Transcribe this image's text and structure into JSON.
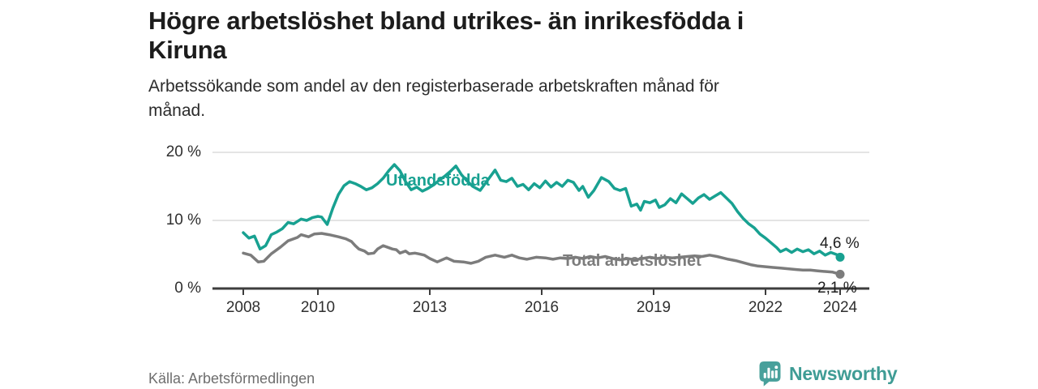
{
  "header": {
    "title_lines": [
      "Högre arbetslöshet bland utrikes- än inrikesfödda i",
      "Kiruna"
    ],
    "subtitle_lines": [
      "Arbetssökande som andel av den registerbaserade arbetskraften månad för",
      "månad."
    ]
  },
  "footer": {
    "source": "Källa: Arbetsförmedlingen",
    "brand": "Newsworthy"
  },
  "colors": {
    "accent_teal": "#18a191",
    "line_gray": "#7c7c7c",
    "axis": "#3d3d3d",
    "grid": "#dcdcdc",
    "brand_teal": "#3f9c95",
    "title_text": "#1c1c1c",
    "value_label_text": "#1d1d1d"
  },
  "chart_data": {
    "type": "line",
    "unit": "%",
    "grid": "horizontal-only",
    "x_range": [
      2008,
      2024
    ],
    "y_range": [
      0,
      20
    ],
    "x_ticks": [
      {
        "value": 2008,
        "label": "2008"
      },
      {
        "value": 2010,
        "label": "2010"
      },
      {
        "value": 2013,
        "label": "2013"
      },
      {
        "value": 2016,
        "label": "2016"
      },
      {
        "value": 2019,
        "label": "2019"
      },
      {
        "value": 2022,
        "label": "2022"
      },
      {
        "value": 2024,
        "label": "2024"
      }
    ],
    "y_ticks": [
      {
        "value": 0,
        "label": "0 %"
      },
      {
        "value": 10,
        "label": "10 %"
      },
      {
        "value": 20,
        "label": "20 %"
      }
    ],
    "series": [
      {
        "name": "Utlandsfödda",
        "color": "#18a191",
        "end_label": "4,6 %",
        "end_value": 4.6,
        "points": [
          [
            2008.0,
            8.2
          ],
          [
            2008.15,
            7.4
          ],
          [
            2008.3,
            7.7
          ],
          [
            2008.45,
            5.8
          ],
          [
            2008.6,
            6.3
          ],
          [
            2008.75,
            7.9
          ],
          [
            2008.9,
            8.3
          ],
          [
            2009.05,
            8.8
          ],
          [
            2009.2,
            9.7
          ],
          [
            2009.35,
            9.5
          ],
          [
            2009.55,
            10.2
          ],
          [
            2009.7,
            10.0
          ],
          [
            2009.85,
            10.4
          ],
          [
            2010.0,
            10.6
          ],
          [
            2010.1,
            10.5
          ],
          [
            2010.25,
            9.4
          ],
          [
            2010.4,
            11.8
          ],
          [
            2010.55,
            13.8
          ],
          [
            2010.7,
            15.1
          ],
          [
            2010.85,
            15.7
          ],
          [
            2011.0,
            15.4
          ],
          [
            2011.15,
            15.0
          ],
          [
            2011.3,
            14.5
          ],
          [
            2011.45,
            14.8
          ],
          [
            2011.6,
            15.4
          ],
          [
            2011.75,
            16.2
          ],
          [
            2011.9,
            17.3
          ],
          [
            2012.05,
            18.2
          ],
          [
            2012.2,
            17.3
          ],
          [
            2012.35,
            15.7
          ],
          [
            2012.5,
            14.5
          ],
          [
            2012.65,
            14.9
          ],
          [
            2012.8,
            14.3
          ],
          [
            2012.95,
            14.7
          ],
          [
            2013.1,
            15.2
          ],
          [
            2013.25,
            15.9
          ],
          [
            2013.4,
            16.5
          ],
          [
            2013.55,
            17.2
          ],
          [
            2013.7,
            18.0
          ],
          [
            2013.85,
            16.7
          ],
          [
            2014.0,
            15.8
          ],
          [
            2014.15,
            15.0
          ],
          [
            2014.35,
            14.4
          ],
          [
            2014.55,
            15.9
          ],
          [
            2014.75,
            17.4
          ],
          [
            2014.9,
            15.9
          ],
          [
            2015.05,
            15.7
          ],
          [
            2015.2,
            16.2
          ],
          [
            2015.35,
            15.0
          ],
          [
            2015.5,
            15.3
          ],
          [
            2015.65,
            14.5
          ],
          [
            2015.8,
            15.4
          ],
          [
            2015.95,
            14.8
          ],
          [
            2016.1,
            15.8
          ],
          [
            2016.25,
            14.9
          ],
          [
            2016.4,
            15.6
          ],
          [
            2016.55,
            15.0
          ],
          [
            2016.7,
            15.9
          ],
          [
            2016.85,
            15.6
          ],
          [
            2017.0,
            14.4
          ],
          [
            2017.1,
            15.0
          ],
          [
            2017.25,
            13.4
          ],
          [
            2017.4,
            14.4
          ],
          [
            2017.6,
            16.3
          ],
          [
            2017.8,
            15.7
          ],
          [
            2017.95,
            14.7
          ],
          [
            2018.1,
            14.4
          ],
          [
            2018.25,
            14.7
          ],
          [
            2018.4,
            12.1
          ],
          [
            2018.55,
            12.4
          ],
          [
            2018.65,
            11.5
          ],
          [
            2018.75,
            12.8
          ],
          [
            2018.9,
            12.6
          ],
          [
            2019.05,
            13.0
          ],
          [
            2019.15,
            11.9
          ],
          [
            2019.3,
            12.3
          ],
          [
            2019.45,
            13.2
          ],
          [
            2019.6,
            12.6
          ],
          [
            2019.75,
            13.9
          ],
          [
            2019.9,
            13.2
          ],
          [
            2020.05,
            12.5
          ],
          [
            2020.2,
            13.3
          ],
          [
            2020.35,
            13.8
          ],
          [
            2020.5,
            13.1
          ],
          [
            2020.65,
            13.6
          ],
          [
            2020.8,
            14.1
          ],
          [
            2020.95,
            13.3
          ],
          [
            2021.1,
            12.5
          ],
          [
            2021.25,
            11.3
          ],
          [
            2021.4,
            10.3
          ],
          [
            2021.55,
            9.5
          ],
          [
            2021.7,
            8.9
          ],
          [
            2021.85,
            8.0
          ],
          [
            2022.0,
            7.4
          ],
          [
            2022.15,
            6.7
          ],
          [
            2022.3,
            6.0
          ],
          [
            2022.4,
            5.4
          ],
          [
            2022.55,
            5.8
          ],
          [
            2022.7,
            5.3
          ],
          [
            2022.85,
            5.8
          ],
          [
            2023.0,
            5.4
          ],
          [
            2023.15,
            5.7
          ],
          [
            2023.3,
            5.1
          ],
          [
            2023.45,
            5.5
          ],
          [
            2023.6,
            4.9
          ],
          [
            2023.75,
            5.3
          ],
          [
            2023.9,
            5.0
          ],
          [
            2024.0,
            4.6
          ]
        ]
      },
      {
        "name": "Total arbetslöshet",
        "color": "#7c7c7c",
        "end_label": "2,1 %",
        "end_value": 2.1,
        "points": [
          [
            2008.0,
            5.2
          ],
          [
            2008.2,
            4.9
          ],
          [
            2008.4,
            3.9
          ],
          [
            2008.55,
            4.0
          ],
          [
            2008.75,
            5.1
          ],
          [
            2009.0,
            6.1
          ],
          [
            2009.2,
            7.0
          ],
          [
            2009.45,
            7.5
          ],
          [
            2009.55,
            7.9
          ],
          [
            2009.75,
            7.6
          ],
          [
            2009.9,
            8.0
          ],
          [
            2010.1,
            8.1
          ],
          [
            2010.3,
            7.9
          ],
          [
            2010.55,
            7.6
          ],
          [
            2010.75,
            7.3
          ],
          [
            2010.9,
            6.9
          ],
          [
            2011.0,
            6.3
          ],
          [
            2011.1,
            5.8
          ],
          [
            2011.25,
            5.5
          ],
          [
            2011.35,
            5.1
          ],
          [
            2011.5,
            5.2
          ],
          [
            2011.6,
            5.8
          ],
          [
            2011.75,
            6.3
          ],
          [
            2011.85,
            6.1
          ],
          [
            2012.0,
            5.8
          ],
          [
            2012.1,
            5.7
          ],
          [
            2012.2,
            5.2
          ],
          [
            2012.35,
            5.5
          ],
          [
            2012.45,
            5.1
          ],
          [
            2012.6,
            5.2
          ],
          [
            2012.7,
            5.1
          ],
          [
            2012.85,
            4.9
          ],
          [
            2013.0,
            4.4
          ],
          [
            2013.2,
            3.9
          ],
          [
            2013.45,
            4.5
          ],
          [
            2013.65,
            4.0
          ],
          [
            2013.9,
            3.9
          ],
          [
            2014.1,
            3.7
          ],
          [
            2014.3,
            4.0
          ],
          [
            2014.5,
            4.6
          ],
          [
            2014.75,
            4.9
          ],
          [
            2015.0,
            4.6
          ],
          [
            2015.2,
            4.9
          ],
          [
            2015.4,
            4.5
          ],
          [
            2015.6,
            4.3
          ],
          [
            2015.85,
            4.6
          ],
          [
            2016.1,
            4.5
          ],
          [
            2016.3,
            4.3
          ],
          [
            2016.5,
            4.5
          ],
          [
            2016.7,
            4.4
          ],
          [
            2016.9,
            4.6
          ],
          [
            2017.1,
            4.4
          ],
          [
            2017.3,
            4.7
          ],
          [
            2017.5,
            4.5
          ],
          [
            2017.7,
            4.7
          ],
          [
            2017.9,
            4.4
          ],
          [
            2018.1,
            4.2
          ],
          [
            2018.3,
            4.4
          ],
          [
            2018.5,
            4.2
          ],
          [
            2018.7,
            4.4
          ],
          [
            2018.9,
            4.6
          ],
          [
            2019.1,
            4.4
          ],
          [
            2019.3,
            4.6
          ],
          [
            2019.5,
            4.5
          ],
          [
            2019.7,
            4.6
          ],
          [
            2019.9,
            4.7
          ],
          [
            2020.1,
            4.8
          ],
          [
            2020.3,
            4.7
          ],
          [
            2020.5,
            4.9
          ],
          [
            2020.7,
            4.7
          ],
          [
            2020.85,
            4.5
          ],
          [
            2021.0,
            4.3
          ],
          [
            2021.2,
            4.1
          ],
          [
            2021.4,
            3.8
          ],
          [
            2021.6,
            3.5
          ],
          [
            2021.8,
            3.3
          ],
          [
            2022.0,
            3.2
          ],
          [
            2022.2,
            3.1
          ],
          [
            2022.4,
            3.0
          ],
          [
            2022.6,
            2.9
          ],
          [
            2022.8,
            2.8
          ],
          [
            2023.0,
            2.7
          ],
          [
            2023.2,
            2.7
          ],
          [
            2023.4,
            2.6
          ],
          [
            2023.6,
            2.5
          ],
          [
            2023.8,
            2.4
          ],
          [
            2024.0,
            2.1
          ]
        ]
      }
    ]
  }
}
